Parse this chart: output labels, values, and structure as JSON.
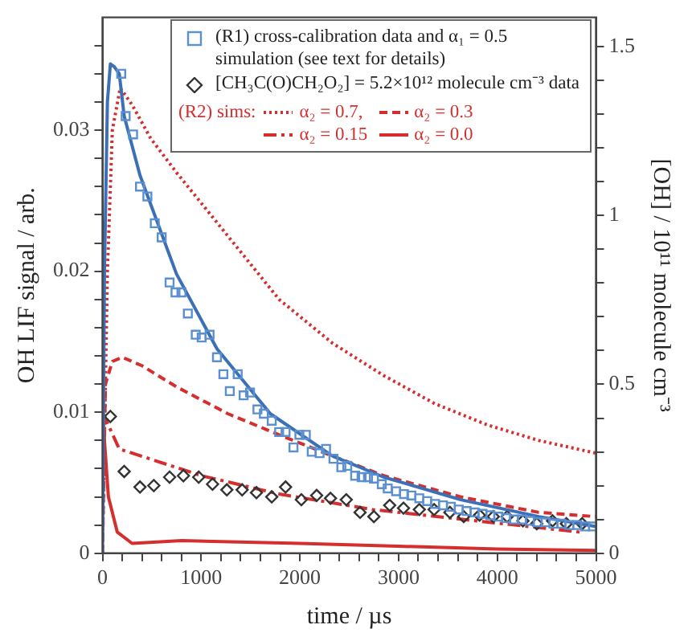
{
  "chart_data": {
    "type": "scatter",
    "xlabel": "time / µs",
    "ylabel": "OH LIF signal / arb.",
    "y2label": "[OH] / 10¹¹ molecule cm⁻³",
    "legend_title": "(R2) sims:",
    "legend": "top right",
    "grid": false,
    "xlim": [
      0,
      5000
    ],
    "xticks": [
      0,
      {
        "value": 200,
        "label": null
      },
      {
        "value": 400,
        "label": null
      },
      {
        "value": 600,
        "label": null
      },
      {
        "value": 800,
        "label": null
      },
      1000,
      {
        "value": 1200,
        "label": null
      },
      {
        "value": 1400,
        "label": null
      },
      {
        "value": 1600,
        "label": null
      },
      {
        "value": 1800,
        "label": null
      },
      2000,
      {
        "value": 2200,
        "label": null
      },
      {
        "value": 2400,
        "label": null
      },
      {
        "value": 2600,
        "label": null
      },
      {
        "value": 2800,
        "label": null
      },
      3000,
      {
        "value": 3200,
        "label": null
      },
      {
        "value": 3400,
        "label": null
      },
      {
        "value": 3600,
        "label": null
      },
      {
        "value": 3800,
        "label": null
      },
      4000,
      {
        "value": 4200,
        "label": null
      },
      {
        "value": 4400,
        "label": null
      },
      {
        "value": 4600,
        "label": null
      },
      {
        "value": 4800,
        "label": null
      },
      5000
    ],
    "ylim": [
      0,
      0.038
    ],
    "yticks": [
      0,
      {
        "value": 0.002,
        "label": null
      },
      {
        "value": 0.004,
        "label": null
      },
      {
        "value": 0.006,
        "label": null
      },
      {
        "value": 0.008,
        "label": null
      },
      0.01,
      {
        "value": 0.012,
        "label": null
      },
      {
        "value": 0.014,
        "label": null
      },
      {
        "value": 0.016,
        "label": null
      },
      {
        "value": 0.018,
        "label": null
      },
      0.02,
      {
        "value": 0.022,
        "label": null
      },
      {
        "value": 0.024,
        "label": null
      },
      {
        "value": 0.026,
        "label": null
      },
      {
        "value": 0.028,
        "label": null
      },
      0.03,
      {
        "value": 0.032,
        "label": null
      },
      {
        "value": 0.034,
        "label": null
      },
      {
        "value": 0.036,
        "label": null
      }
    ],
    "y2lim": [
      0,
      1.586
    ],
    "y2ticks": [
      0,
      {
        "value": 0.1,
        "label": null
      },
      {
        "value": 0.2,
        "label": null
      },
      {
        "value": 0.3,
        "label": null
      },
      {
        "value": 0.4,
        "label": null
      },
      0.5,
      {
        "value": 0.6,
        "label": null
      },
      {
        "value": 0.7,
        "label": null
      },
      {
        "value": 0.8,
        "label": null
      },
      {
        "value": 0.9,
        "label": null
      },
      1,
      {
        "value": 1.1,
        "label": null
      },
      {
        "value": 1.2,
        "label": null
      },
      {
        "value": 1.3,
        "label": null
      },
      {
        "value": 1.4,
        "label": null
      },
      1.5
    ],
    "series": [
      {
        "name": "(R1) cross-calibration data and α₁ = 0.5 simulation (see text for details)",
        "marker": "square",
        "color": "#5b8fd0",
        "x": [
          190,
          235,
          310,
          380,
          455,
          530,
          600,
          680,
          740,
          800,
          865,
          945,
          1005,
          1085,
          1160,
          1225,
          1290,
          1370,
          1430,
          1495,
          1570,
          1635,
          1715,
          1790,
          1855,
          1935,
          1995,
          2060,
          2120,
          2200,
          2265,
          2340,
          2420,
          2480,
          2560,
          2625,
          2690,
          2750,
          2830,
          2890,
          2975,
          3055,
          3130,
          3210,
          3290,
          3370,
          3450,
          3530,
          3610,
          3690,
          3770,
          3850,
          3930,
          4010,
          4090,
          4170,
          4250,
          4330,
          4410,
          4490,
          4570,
          4650,
          4730,
          4810,
          4890,
          4970
        ],
        "values": [
          0.034,
          0.031,
          0.0297,
          0.026,
          0.0253,
          0.0234,
          0.0224,
          0.0192,
          0.0185,
          0.0185,
          0.017,
          0.0155,
          0.0153,
          0.0155,
          0.0139,
          0.0127,
          0.0115,
          0.0127,
          0.0112,
          0.0114,
          0.0102,
          0.0099,
          0.0094,
          0.0086,
          0.0086,
          0.0075,
          0.0084,
          0.0084,
          0.0072,
          0.0071,
          0.0074,
          0.0067,
          0.0061,
          0.0062,
          0.0055,
          0.0054,
          0.0054,
          0.0053,
          0.0049,
          0.0046,
          0.0044,
          0.0042,
          0.0041,
          0.0039,
          0.0037,
          0.0035,
          0.0034,
          0.0033,
          0.0031,
          0.003,
          0.0029,
          0.0028,
          0.0027,
          0.0026,
          0.0025,
          0.0024,
          0.0024,
          0.0023,
          0.0022,
          0.0022,
          0.0021,
          0.0021,
          0.002,
          0.002,
          0.0019,
          0.0019
        ]
      },
      {
        "type": "line",
        "line_style": "solid",
        "color": "#3b6fb6",
        "x": [
          0,
          20,
          50,
          80,
          120,
          170,
          220,
          380,
          750,
          1160,
          1700,
          2330,
          2850,
          3630,
          4420,
          5000
        ],
        "values": [
          0,
          0.02,
          0.032,
          0.0347,
          0.0345,
          0.034,
          0.031,
          0.0268,
          0.0198,
          0.0145,
          0.0099,
          0.0069,
          0.0054,
          0.0038,
          0.0026,
          0.0019
        ]
      },
      {
        "name": "[CH₃C(O)CH₂O₂] = 5.2×10¹² molecule cm⁻³ data",
        "marker": "diamond",
        "color": "#333333",
        "x": [
          80,
          220,
          380,
          520,
          680,
          820,
          975,
          1115,
          1260,
          1415,
          1560,
          1715,
          1855,
          2015,
          2170,
          2310,
          2470,
          2610,
          2750,
          2910,
          3050,
          3210,
          3360,
          3520,
          3660,
          3820,
          3960,
          4100,
          4260,
          4400,
          4560,
          4700,
          4860
        ],
        "values": [
          0.0097,
          0.0058,
          0.0047,
          0.0048,
          0.0054,
          0.0055,
          0.0054,
          0.0049,
          0.0045,
          0.0045,
          0.0043,
          0.004,
          0.0047,
          0.0038,
          0.0041,
          0.0039,
          0.0038,
          0.0029,
          0.0026,
          0.0034,
          0.0032,
          0.0031,
          0.0031,
          0.0029,
          0.0026,
          0.0027,
          0.0026,
          0.0026,
          0.0023,
          0.0021,
          0.0023,
          0.0021,
          0.0021
        ]
      },
      {
        "name": "α₂ = 0.7,",
        "type": "line",
        "line_style": "dotted",
        "color": "#d42e2e",
        "x": [
          0,
          50,
          100,
          180,
          300,
          490,
          750,
          1270,
          1790,
          2330,
          2850,
          3370,
          3900,
          4420,
          5000
        ],
        "values": [
          0,
          0.02,
          0.03,
          0.033,
          0.0318,
          0.0294,
          0.027,
          0.0225,
          0.018,
          0.0149,
          0.0126,
          0.0106,
          0.0091,
          0.008,
          0.0071
        ]
      },
      {
        "name": "α₂ = 0.3",
        "type": "line",
        "line_style": "dashed",
        "color": "#d42e2e",
        "x": [
          0,
          30,
          100,
          200,
          400,
          750,
          1270,
          1790,
          2330,
          2850,
          3630,
          4420,
          5000
        ],
        "values": [
          0,
          0.012,
          0.0136,
          0.0139,
          0.0133,
          0.0118,
          0.0099,
          0.0084,
          0.0069,
          0.0055,
          0.004,
          0.0029,
          0.0026
        ]
      },
      {
        "name": "α₂ = 0.15",
        "type": "line",
        "line_style": "dashdot",
        "color": "#d42e2e",
        "x": [
          0,
          170,
          1005,
          1790,
          2740,
          3790,
          4840
        ],
        "values": [
          0.01,
          0.0074,
          0.0055,
          0.0042,
          0.0031,
          0.0023,
          0.0015
        ]
      },
      {
        "name": "α₂ = 0.0",
        "type": "line",
        "line_style": "solid",
        "color": "#d42e2e",
        "x": [
          0,
          20,
          60,
          150,
          300,
          800,
          2000,
          3000,
          4000,
          5000
        ],
        "values": [
          0.01,
          0.008,
          0.004,
          0.0015,
          0.0007,
          0.0009,
          0.0007,
          0.0005,
          0.0003,
          0.0002
        ]
      }
    ]
  }
}
